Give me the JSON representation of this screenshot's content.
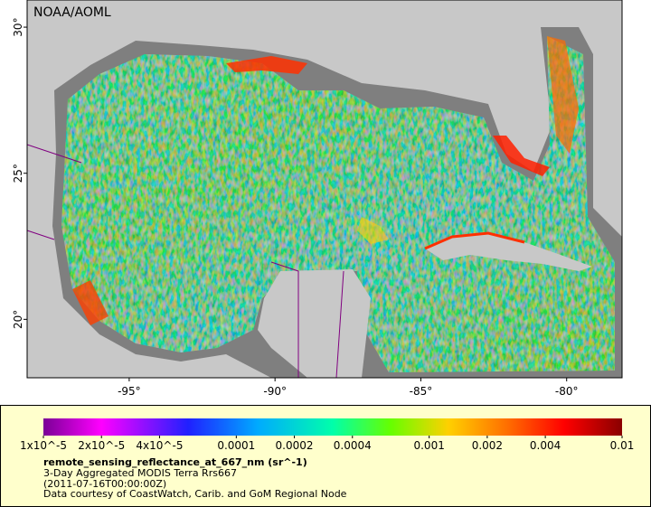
{
  "map": {
    "watermark": "NOAA/AOML",
    "lon_range": [
      -98.5,
      -78.1
    ],
    "lat_range": [
      18.0,
      30.93
    ],
    "lon_ticks": [
      {
        "value": -95,
        "label": "-95°"
      },
      {
        "value": -90,
        "label": "-90°"
      },
      {
        "value": -85,
        "label": "-85°"
      },
      {
        "value": -80,
        "label": "-80°"
      }
    ],
    "lat_ticks": [
      {
        "value": 20,
        "label": "20°"
      },
      {
        "value": 25,
        "label": "25°"
      },
      {
        "value": 30,
        "label": "30°"
      }
    ]
  },
  "legend": {
    "colorbar_range": [
      1e-05,
      0.01
    ],
    "colorbar_scale": "log",
    "ticks": [
      {
        "value": 1e-05,
        "label": "1x10^-5"
      },
      {
        "value": 2e-05,
        "label": "2x10^-5"
      },
      {
        "value": 4e-05,
        "label": "4x10^-5"
      },
      0.0001,
      0.0002,
      0.0004,
      0.001,
      0.002,
      0.004,
      0.01
    ],
    "variable": "remote_sensing_reflectance_at_667_nm (sr^-1)",
    "lines": [
      "3-Day Aggregated MODIS Terra Rrs667",
      "(2011-07-16T00:00:00Z)",
      "Data courtesy of CoastWatch, Carib. and GoM Regional Node"
    ]
  }
}
